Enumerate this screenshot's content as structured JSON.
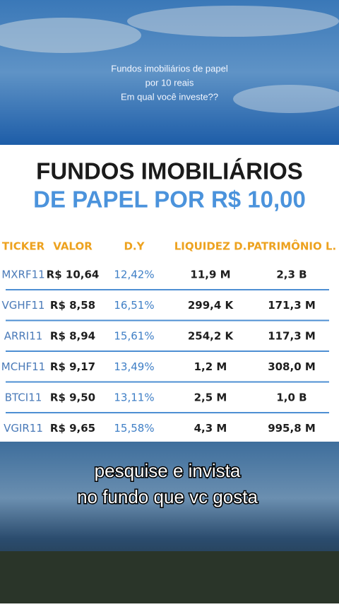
{
  "overlay": {
    "lines": [
      "Fundos imobiliários de papel",
      "por 10 reais",
      "Em qual você investe??"
    ]
  },
  "panel": {
    "title": [
      "FUNDOS IMOBILIÁRIOS",
      "DE PAPEL POR R$ 10,00"
    ],
    "table": {
      "header": [
        "TICKER",
        "VALOR",
        "D.Y",
        "LIQUIDEZ D.",
        "PATRIMÔNIO L."
      ],
      "rows": [
        [
          "MXRF11",
          "R$ 10,64",
          "12,42%",
          "11,9 M",
          "2,3 B"
        ],
        [
          "VGHF11",
          "R$ 8,58",
          "16,51%",
          "299,4 K",
          "171,3 M"
        ],
        [
          "ARRI11",
          "R$ 8,94",
          "15,61%",
          "254,2 K",
          "117,3 M"
        ],
        [
          "MCHF11",
          "R$ 9,17",
          "13,49%",
          "1,2 M",
          "308,0 M"
        ],
        [
          "BTCI11",
          "R$ 9,50",
          "13,11%",
          "2,5 M",
          "1,0 B"
        ],
        [
          "VGIR11",
          "R$ 9,65",
          "15,58%",
          "4,3 M",
          "995,8 M"
        ]
      ]
    }
  },
  "caption": [
    "pesquise e invista",
    "no fundo que vc gosta"
  ]
}
